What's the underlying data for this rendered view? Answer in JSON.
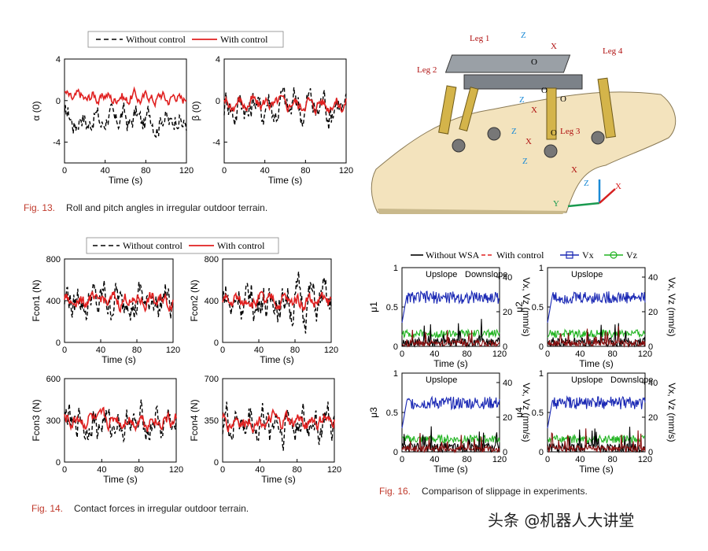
{
  "captions": {
    "fig13_num": "Fig. 13.",
    "fig13_text": "Roll and pitch angles in irregular outdoor terrain.",
    "fig14_num": "Fig. 14.",
    "fig14_text": "Contact forces in irregular outdoor terrain.",
    "fig16_num": "Fig. 16.",
    "fig16_text": "Comparison of slippage in experiments."
  },
  "watermark": "头条 @机器人大讲堂",
  "robot_labels": [
    "Leg 1",
    "Leg 2",
    "Leg 3",
    "Leg 4",
    "O",
    "O",
    "O",
    "O",
    "X",
    "X",
    "X",
    "X",
    "Z",
    "Z",
    "Z",
    "Z",
    "Y",
    "Z",
    "X"
  ],
  "colors": {
    "control": "#e02020",
    "without": "#000000",
    "vx": "#1a28b4",
    "vz": "#22b422",
    "terrain": "#f3e3bd"
  },
  "legends": {
    "fig13": [
      "Without control",
      "With control"
    ],
    "fig14": [
      "Without control",
      "With control"
    ],
    "fig16": [
      "Without WSA",
      "With control",
      "Vx",
      "Vz"
    ]
  },
  "chart_data": [
    {
      "id": "fig13a",
      "type": "line",
      "ylabel": "α (0)",
      "xlabel": "Time (s)",
      "xlim": [
        0,
        120
      ],
      "ylim": [
        -6,
        4
      ],
      "xticks": [
        0,
        40,
        80,
        120
      ],
      "yticks": [
        4,
        0,
        -4
      ],
      "series": [
        {
          "name": "Without control",
          "mean": -1.8,
          "amp": 1.6
        },
        {
          "name": "With control",
          "mean": 0.3,
          "amp": 0.8
        }
      ]
    },
    {
      "id": "fig13b",
      "type": "line",
      "ylabel": "β (0)",
      "xlabel": "Time (s)",
      "xlim": [
        0,
        120
      ],
      "ylim": [
        -6,
        4
      ],
      "xticks": [
        0,
        40,
        80,
        120
      ],
      "yticks": [
        4,
        0,
        -4
      ],
      "series": [
        {
          "name": "Without control",
          "mean": -0.5,
          "amp": 2.2
        },
        {
          "name": "With control",
          "mean": -0.3,
          "amp": 0.9
        }
      ]
    },
    {
      "id": "fig14a",
      "type": "line",
      "ylabel": "Fcon1 (N)",
      "xlabel": "Time (s)",
      "xlim": [
        0,
        120
      ],
      "ylim": [
        0,
        800
      ],
      "xticks": [
        0,
        40,
        80,
        120
      ],
      "yticks": [
        800,
        400,
        0
      ],
      "series": [
        {
          "name": "Without control",
          "mean": 400,
          "amp": 220
        },
        {
          "name": "With control",
          "mean": 400,
          "amp": 90
        }
      ]
    },
    {
      "id": "fig14b",
      "type": "line",
      "ylabel": "Fcon2 (N)",
      "xlabel": "Time (s)",
      "xlim": [
        0,
        120
      ],
      "ylim": [
        0,
        800
      ],
      "xticks": [
        0,
        40,
        80,
        120
      ],
      "yticks": [
        800,
        400,
        0
      ],
      "series": [
        {
          "name": "Without control",
          "mean": 400,
          "amp": 240
        },
        {
          "name": "With control",
          "mean": 400,
          "amp": 90
        }
      ]
    },
    {
      "id": "fig14c",
      "type": "line",
      "ylabel": "Fcon3 (N)",
      "xlabel": "Time (s)",
      "xlim": [
        0,
        120
      ],
      "ylim": [
        0,
        600
      ],
      "xticks": [
        0,
        40,
        80,
        120
      ],
      "yticks": [
        600,
        300,
        0
      ],
      "series": [
        {
          "name": "Without control",
          "mean": 280,
          "amp": 150
        },
        {
          "name": "With control",
          "mean": 300,
          "amp": 70
        }
      ]
    },
    {
      "id": "fig14d",
      "type": "line",
      "ylabel": "Fcon4 (N)",
      "xlabel": "Time (s)",
      "xlim": [
        0,
        120
      ],
      "ylim": [
        0,
        700
      ],
      "xticks": [
        0,
        40,
        80,
        120
      ],
      "yticks": [
        700,
        350,
        0
      ],
      "series": [
        {
          "name": "Without control",
          "mean": 330,
          "amp": 200
        },
        {
          "name": "With control",
          "mean": 340,
          "amp": 80
        }
      ]
    },
    {
      "id": "fig16a",
      "type": "line",
      "ylabel": "μ1",
      "ylabel2": "Vx, Vz (mm/s)",
      "xlabel": "Time (s)",
      "xlim": [
        0,
        120
      ],
      "ylim": [
        0,
        1
      ],
      "xticks": [
        0,
        40,
        80,
        120
      ],
      "yticks": [
        1.0,
        0.5,
        0.0
      ],
      "y2ticks": [
        40,
        20,
        0
      ],
      "annotations": [
        "Upslope",
        "Downslope"
      ]
    },
    {
      "id": "fig16b",
      "type": "line",
      "ylabel": "μ2",
      "ylabel2": "Vx, Vz (mm/s)",
      "xlabel": "Time (s)",
      "xlim": [
        0,
        120
      ],
      "ylim": [
        0,
        1
      ],
      "xticks": [
        0,
        40,
        80,
        120
      ],
      "yticks": [
        1.0,
        0.5,
        0.0
      ],
      "y2ticks": [
        40,
        20,
        0
      ],
      "annotations": [
        "Upslope"
      ]
    },
    {
      "id": "fig16c",
      "type": "line",
      "ylabel": "μ3",
      "ylabel2": "Vx, Vz (mm/s)",
      "xlabel": "Time (s)",
      "xlim": [
        0,
        120
      ],
      "ylim": [
        0,
        1
      ],
      "xticks": [
        0,
        40,
        80,
        120
      ],
      "yticks": [
        1.0,
        0.5,
        0.0
      ],
      "y2ticks": [
        40,
        20,
        0
      ],
      "annotations": [
        "Upslope"
      ]
    },
    {
      "id": "fig16d",
      "type": "line",
      "ylabel": "μ4",
      "ylabel2": "Vx, Vz (mm/s)",
      "xlabel": "Time (s)",
      "xlim": [
        0,
        120
      ],
      "ylim": [
        0,
        1
      ],
      "xticks": [
        0,
        40,
        80,
        120
      ],
      "yticks": [
        1.0,
        0.5,
        0.0
      ],
      "y2ticks": [
        40,
        20,
        0
      ],
      "annotations": [
        "Upslope",
        "Downslope"
      ]
    }
  ]
}
